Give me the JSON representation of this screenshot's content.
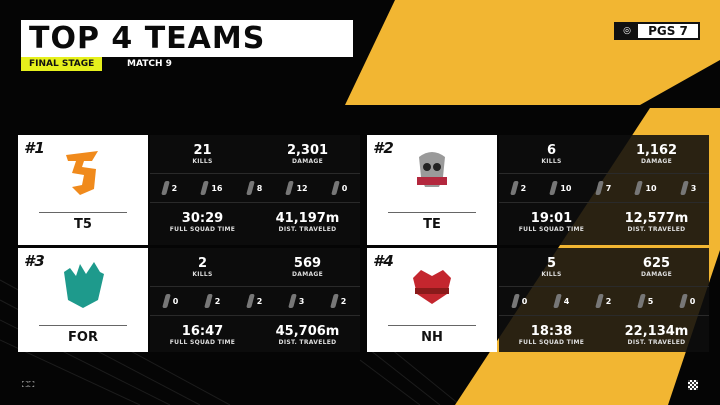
{
  "header": {
    "title": "TOP 4 TEAMS",
    "stage": "FINAL STAGE",
    "match": "MATCH 9",
    "brand_mark": "PGS",
    "brand": "PGS 7"
  },
  "colors": {
    "accent_yellow": "#f2b632",
    "stage_yellow": "#e6f01c",
    "t5": "#f08a1c",
    "for": "#1e9a8c",
    "te": "#b3283e",
    "nh": "#c4262e"
  },
  "labels": {
    "kills": "KILLS",
    "damage": "DAMAGE",
    "time": "FULL SQUAD TIME",
    "dist": "DIST. TRAVELED"
  },
  "teams": [
    {
      "rank": "#1",
      "name": "T5",
      "kills": "21",
      "damage": "2,301",
      "weapons": [
        "2",
        "16",
        "8",
        "12",
        "0"
      ],
      "time": "30:29",
      "dist": "41,197m"
    },
    {
      "rank": "#2",
      "name": "TE",
      "kills": "6",
      "damage": "1,162",
      "weapons": [
        "2",
        "10",
        "7",
        "10",
        "3"
      ],
      "time": "19:01",
      "dist": "12,577m"
    },
    {
      "rank": "#3",
      "name": "FOR",
      "kills": "2",
      "damage": "569",
      "weapons": [
        "0",
        "2",
        "2",
        "3",
        "2"
      ],
      "time": "16:47",
      "dist": "45,706m"
    },
    {
      "rank": "#4",
      "name": "NH",
      "kills": "5",
      "damage": "625",
      "weapons": [
        "0",
        "4",
        "2",
        "5",
        "0"
      ],
      "time": "18:38",
      "dist": "22,134m"
    }
  ],
  "footer": {
    "left_icons": "fullscreen-icons"
  }
}
